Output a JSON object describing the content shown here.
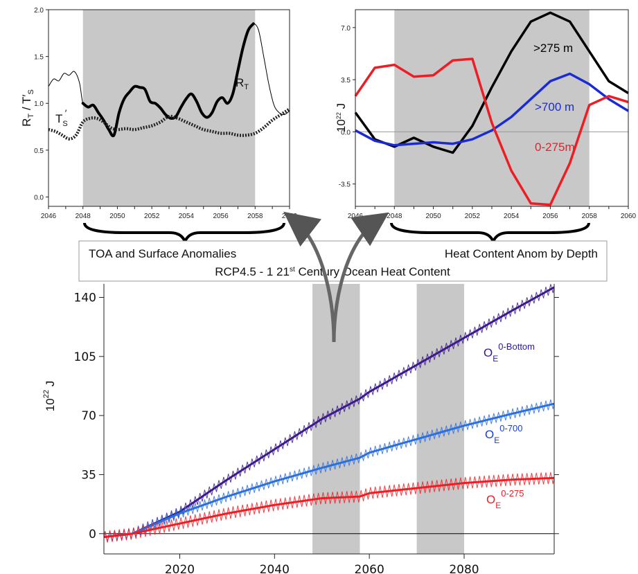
{
  "caption": {
    "left": "TOA and Surface Anomalies",
    "right": "Heat Content Anom by Depth",
    "bottom": "RCP4.5 - 1 21st Century Ocean Heat Content"
  },
  "chart_data": [
    {
      "type": "line",
      "id": "toa",
      "ylabel": "R_T / T'_S",
      "xlim": [
        2046,
        2060
      ],
      "ylim": [
        -0.1,
        2.0
      ],
      "xticks": [
        2046,
        2047,
        2048,
        2049,
        2050,
        2051,
        2052,
        2053,
        2054,
        2055,
        2056,
        2057,
        2058,
        2059,
        2060
      ],
      "xtick_labels": [
        "2046",
        "2048",
        "2050",
        "2052",
        "2054",
        "2056",
        "2058",
        "2060"
      ],
      "yticks": [
        0.0,
        0.5,
        1.0,
        1.5,
        2.0
      ],
      "ytick_labels": [
        "0.0",
        "0.5",
        "1.0",
        "1.5",
        "2.0"
      ],
      "shaded": [
        [
          2048,
          2058
        ]
      ],
      "series": [
        {
          "name": "R_T",
          "color": "#000000",
          "x": [
            2046,
            2046.3,
            2046.6,
            2046.9,
            2047.2,
            2047.5,
            2047.8,
            2048,
            2048.3,
            2048.6,
            2048.9,
            2049.2,
            2049.5,
            2049.8,
            2050.1,
            2050.4,
            2050.7,
            2051,
            2051.3,
            2051.6,
            2051.9,
            2052.2,
            2052.5,
            2052.8,
            2053.1,
            2053.4,
            2053.7,
            2054,
            2054.3,
            2054.6,
            2054.9,
            2055.2,
            2055.5,
            2055.8,
            2056.1,
            2056.4,
            2056.7,
            2057,
            2057.3,
            2057.6,
            2057.9,
            2058.2,
            2058.5,
            2058.8,
            2059.1,
            2059.4,
            2059.7,
            2060
          ],
          "y": [
            1.18,
            1.26,
            1.24,
            1.32,
            1.3,
            1.34,
            1.22,
            1.0,
            0.96,
            0.98,
            0.9,
            0.82,
            0.72,
            0.66,
            0.9,
            1.05,
            1.12,
            1.18,
            1.17,
            1.15,
            1.02,
            1.0,
            0.95,
            0.88,
            0.84,
            0.86,
            0.96,
            1.05,
            1.1,
            1.02,
            0.9,
            0.85,
            0.9,
            1.02,
            1.06,
            1.0,
            1.1,
            1.35,
            1.6,
            1.78,
            1.85,
            1.78,
            1.5,
            1.2,
            0.98,
            0.9,
            0.88,
            0.92
          ]
        },
        {
          "name": "T'_S",
          "color": "#222222",
          "x": [
            2046,
            2046.4,
            2046.8,
            2047.2,
            2047.6,
            2048,
            2048.4,
            2048.8,
            2049.2,
            2049.6,
            2050,
            2050.5,
            2051,
            2051.5,
            2052,
            2052.5,
            2053,
            2053.5,
            2054,
            2054.5,
            2055,
            2055.5,
            2056,
            2056.5,
            2057,
            2057.5,
            2058,
            2058.5,
            2059,
            2059.5,
            2060
          ],
          "y": [
            0.72,
            0.7,
            0.66,
            0.62,
            0.66,
            0.8,
            0.84,
            0.84,
            0.8,
            0.74,
            0.72,
            0.73,
            0.72,
            0.74,
            0.76,
            0.8,
            0.86,
            0.84,
            0.8,
            0.76,
            0.72,
            0.7,
            0.68,
            0.68,
            0.66,
            0.66,
            0.68,
            0.74,
            0.82,
            0.88,
            0.94
          ]
        }
      ],
      "annotations": [
        "R_T",
        "T'_S"
      ]
    },
    {
      "type": "line",
      "id": "depth",
      "ylabel": "10^22 J",
      "xlim": [
        2046,
        2060
      ],
      "ylim": [
        -5.0,
        8.2
      ],
      "xticks": [
        2046,
        2047,
        2048,
        2049,
        2050,
        2051,
        2052,
        2053,
        2054,
        2055,
        2056,
        2057,
        2058,
        2059,
        2060
      ],
      "xtick_labels": [
        "2046",
        "2048",
        "2050",
        "2052",
        "2054",
        "2056",
        "2058",
        "2060"
      ],
      "yticks": [
        -3.5,
        0.0,
        3.5,
        7.0
      ],
      "ytick_labels": [
        "-3.5",
        "0.0",
        "3.5",
        "7.0"
      ],
      "shaded": [
        [
          2048,
          2058
        ]
      ],
      "series": [
        {
          "name": ">275 m",
          "color": "#000000",
          "x": [
            2046,
            2047,
            2048,
            2049,
            2050,
            2051,
            2052,
            2053,
            2054,
            2055,
            2056,
            2057,
            2058,
            2059,
            2060
          ],
          "y": [
            1.3,
            -0.5,
            -1.0,
            -0.4,
            -1.0,
            -1.4,
            0.4,
            3.0,
            5.4,
            7.4,
            8.0,
            7.4,
            5.4,
            3.4,
            2.6
          ]
        },
        {
          "name": ">700 m",
          "color": "#1a2bd6",
          "x": [
            2046,
            2047,
            2048,
            2049,
            2050,
            2051,
            2052,
            2053,
            2054,
            2055,
            2056,
            2057,
            2058,
            2059,
            2060
          ],
          "y": [
            0.1,
            -0.6,
            -0.9,
            -0.8,
            -0.7,
            -0.8,
            -0.5,
            0.1,
            1.0,
            2.2,
            3.4,
            3.9,
            3.2,
            2.2,
            1.4
          ]
        },
        {
          "name": "0-275m",
          "color": "#ee1d23",
          "x": [
            2046,
            2047,
            2048,
            2049,
            2050,
            2051,
            2052,
            2053,
            2054,
            2055,
            2056,
            2057,
            2058,
            2059,
            2060
          ],
          "y": [
            2.4,
            4.3,
            4.5,
            3.7,
            3.8,
            4.8,
            4.9,
            0.6,
            -2.6,
            -4.8,
            -4.9,
            -2.1,
            1.8,
            2.4,
            2.0
          ]
        }
      ],
      "annotations": [
        ">275 m",
        ">700 m",
        "0-275m"
      ]
    },
    {
      "type": "line",
      "id": "ohc",
      "ylabel": "10^22 J",
      "xlim": [
        2004,
        2099
      ],
      "ylim": [
        -12,
        148
      ],
      "xticks": [
        2020,
        2040,
        2060,
        2080
      ],
      "xtick_labels": [
        "2020",
        "2040",
        "2060",
        "2080"
      ],
      "yticks": [
        0,
        35,
        70,
        105,
        140
      ],
      "ytick_labels": [
        "0",
        "35",
        "70",
        "105",
        "140"
      ],
      "shaded": [
        [
          2048,
          2058
        ],
        [
          2070,
          2080
        ]
      ],
      "series": [
        {
          "name": "O_E 0-Bottom",
          "color": "#3a1a8c",
          "x": [
            2004,
            2010,
            2020,
            2030,
            2040,
            2050,
            2058,
            2060,
            2070,
            2080,
            2090,
            2099
          ],
          "y": [
            -2,
            0,
            13,
            32,
            50,
            68,
            80,
            84,
            100,
            116,
            132,
            146
          ],
          "wiggle": 3.0
        },
        {
          "name": "O_E 0-700",
          "color": "#2b6fde",
          "x": [
            2004,
            2010,
            2020,
            2030,
            2040,
            2050,
            2058,
            2060,
            2070,
            2080,
            2090,
            2099
          ],
          "y": [
            -2,
            0,
            12,
            22,
            31,
            39,
            45,
            48,
            56,
            64,
            71,
            77
          ],
          "wiggle": 3.0
        },
        {
          "name": "O_E 0-275",
          "color": "#ee1d23",
          "x": [
            2004,
            2010,
            2020,
            2030,
            2040,
            2050,
            2058,
            2060,
            2070,
            2080,
            2090,
            2099
          ],
          "y": [
            -2,
            0,
            6,
            12,
            17,
            21,
            22,
            24,
            27,
            30,
            32,
            33
          ],
          "wiggle": 3.5
        }
      ],
      "annotations": [
        "O_E 0-Bottom",
        "O_E 0-700",
        "O_E 0-275"
      ]
    }
  ]
}
